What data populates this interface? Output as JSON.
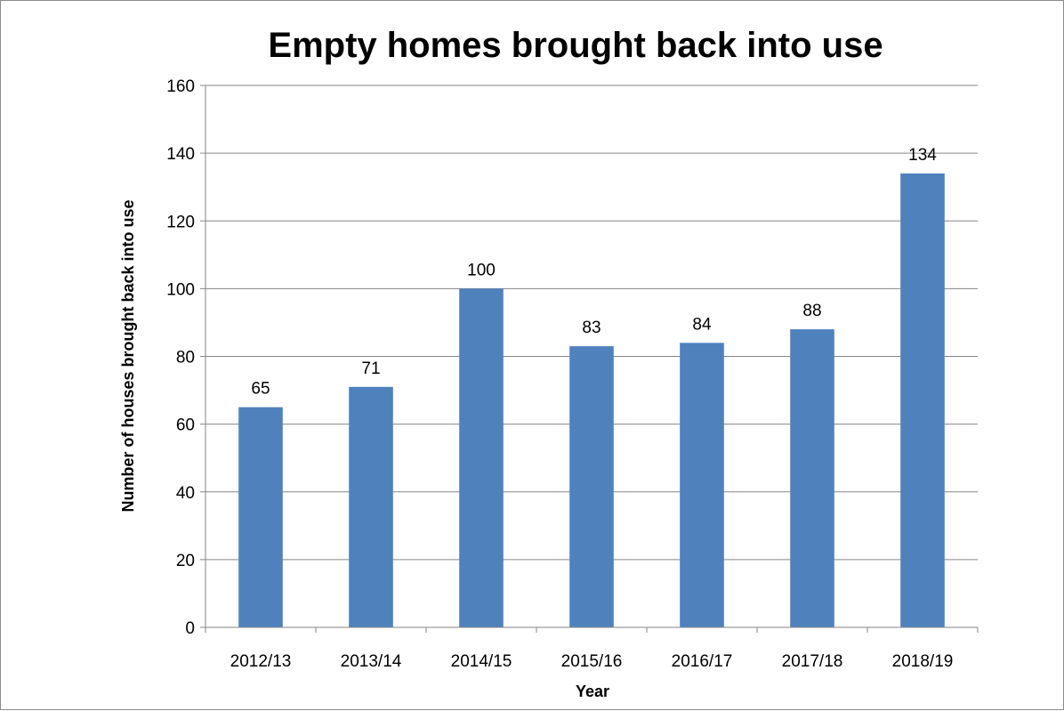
{
  "chart_data": {
    "type": "bar",
    "title": "Empty homes brought back into use",
    "xlabel": "Year",
    "ylabel": "Number of houses brought back into use",
    "categories": [
      "2012/13",
      "2013/14",
      "2014/15",
      "2015/16",
      "2016/17",
      "2017/18",
      "2018/19"
    ],
    "values": [
      65,
      71,
      100,
      83,
      84,
      88,
      134
    ],
    "ylim": [
      0,
      160
    ],
    "yticks": [
      0,
      20,
      40,
      60,
      80,
      100,
      120,
      140,
      160
    ],
    "grid": true,
    "legend": "none",
    "data_labels": true,
    "bar_color": "#4f81bd",
    "gridline_color": "#868686"
  }
}
